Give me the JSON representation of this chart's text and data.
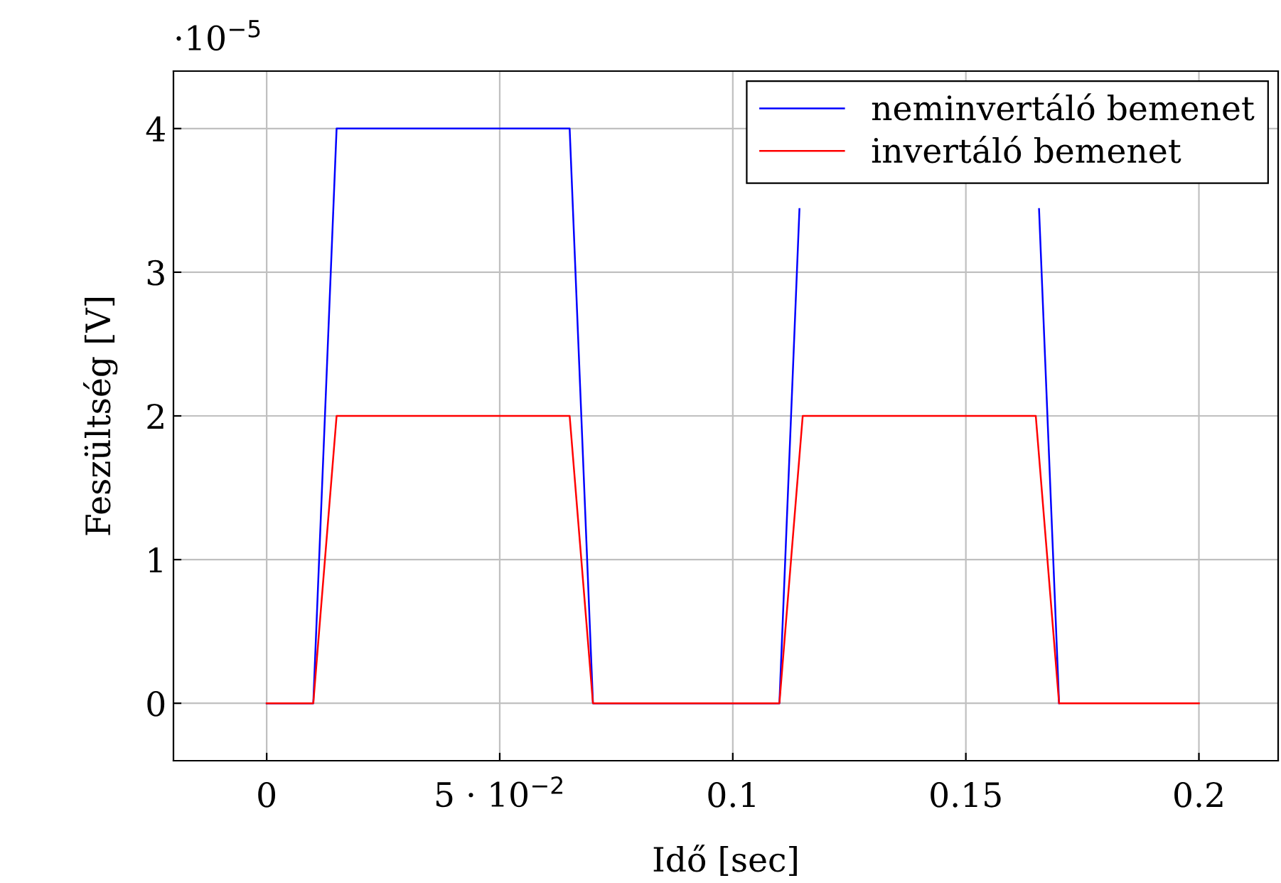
{
  "chart_data": {
    "type": "line",
    "xlabel": "Idő [sec]",
    "ylabel": "Feszültség [V]",
    "xlim": [
      -0.02,
      0.217
    ],
    "ylim": [
      -0.4,
      4.4
    ],
    "xticks": [
      0,
      {
        "value": 0.05,
        "label": "5 · 10$^{−2}$"
      },
      0.1,
      0.15,
      0.2
    ],
    "yticks": [
      0,
      1,
      2,
      3,
      4
    ],
    "annotations": [
      "·10$^{−5}$"
    ],
    "grid": true,
    "legend": "top right",
    "marker": "none",
    "line_style": "solid",
    "series": [
      {
        "name": "neminvertáló bemenet",
        "color": "#0000ff",
        "x": [
          0,
          0.01,
          0.015,
          0.065,
          0.07,
          0.11,
          0.1143,
          0.115,
          0.165,
          0.1657,
          0.17
        ],
        "values": [
          0,
          0,
          4,
          4,
          0,
          0,
          3.44,
          null,
          null,
          3.44,
          0
        ]
      },
      {
        "name": "invertáló bemenet",
        "color": "#ff0000",
        "x": [
          0,
          0.01,
          0.015,
          0.065,
          0.07,
          0.11,
          0.115,
          0.165,
          0.17,
          0.2
        ],
        "values": [
          0,
          0,
          2,
          2,
          0,
          0,
          2,
          2,
          0,
          0
        ]
      }
    ]
  }
}
